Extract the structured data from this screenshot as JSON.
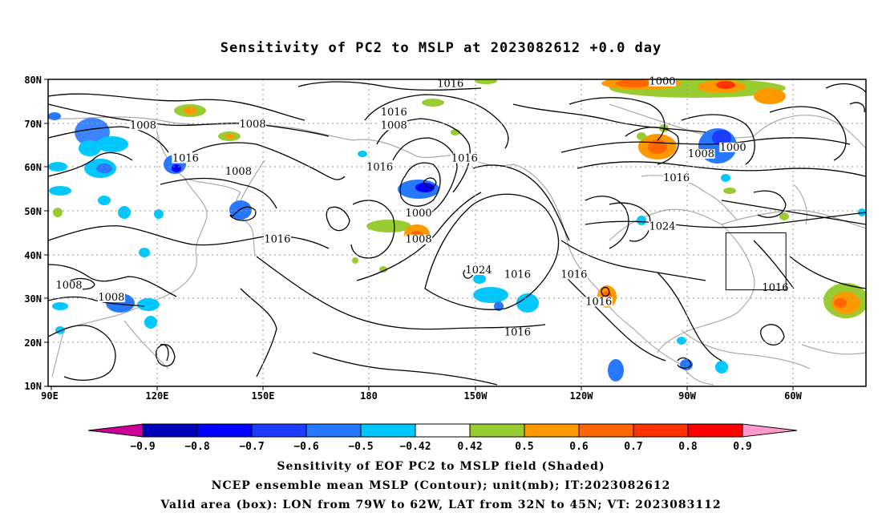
{
  "title": "Sensitivity of PC2 to MSLP at 2023082612 +0.0 day",
  "lat_labels": [
    "80N",
    "70N",
    "60N",
    "50N",
    "40N",
    "30N",
    "20N",
    "10N"
  ],
  "lon_labels": [
    "90E",
    "120E",
    "150E",
    "180",
    "150W",
    "120W",
    "90W",
    "60W"
  ],
  "contour_labels": [
    {
      "text": "1016",
      "lon": -157,
      "lat": 79
    },
    {
      "text": "1000",
      "lon": -97,
      "lat": 79.5
    },
    {
      "text": "1016",
      "lon": -173,
      "lat": 72.5
    },
    {
      "text": "1008",
      "lon": -173,
      "lat": 69.5
    },
    {
      "text": "1008",
      "lon": 116,
      "lat": 69.5
    },
    {
      "text": "1008",
      "lon": 147,
      "lat": 69.8
    },
    {
      "text": "1016",
      "lon": 128,
      "lat": 62
    },
    {
      "text": "1008",
      "lon": 143,
      "lat": 59
    },
    {
      "text": "1016",
      "lon": -177,
      "lat": 60
    },
    {
      "text": "1016",
      "lon": -153,
      "lat": 62
    },
    {
      "text": "1008",
      "lon": -86,
      "lat": 63
    },
    {
      "text": "1000",
      "lon": -77,
      "lat": 64.5
    },
    {
      "text": "1016",
      "lon": -93,
      "lat": 57.5
    },
    {
      "text": "1000",
      "lon": -166,
      "lat": 49.5
    },
    {
      "text": "1008",
      "lon": -166,
      "lat": 43.5
    },
    {
      "text": "1016",
      "lon": 154,
      "lat": 43.5
    },
    {
      "text": "1024",
      "lon": -97,
      "lat": 46.5
    },
    {
      "text": "1024",
      "lon": -149,
      "lat": 36.5
    },
    {
      "text": "1016",
      "lon": -138,
      "lat": 35.5
    },
    {
      "text": "1016",
      "lon": -122,
      "lat": 35.5
    },
    {
      "text": "1008",
      "lon": 95,
      "lat": 33
    },
    {
      "text": "1008",
      "lon": 107,
      "lat": 30.3
    },
    {
      "text": "1016",
      "lon": -115,
      "lat": 29.3
    },
    {
      "text": "1016",
      "lon": -65,
      "lat": 32.5
    },
    {
      "text": "1016",
      "lon": -138,
      "lat": 22.3
    }
  ],
  "valid_box": {
    "lon_min": -79,
    "lon_max": -62,
    "lat_min": 32,
    "lat_max": 45
  },
  "colorbar": {
    "labels": [
      "-0.9",
      "-0.8",
      "-0.7",
      "-0.6",
      "-0.5",
      "-0.42",
      "0.42",
      "0.5",
      "0.6",
      "0.7",
      "0.8",
      "0.9"
    ],
    "colors": [
      "#cc0099",
      "#0000bb",
      "#0000ff",
      "#1c3cff",
      "#2878ff",
      "#00c8ff",
      "#ffffff",
      "#99cc33",
      "#ff9900",
      "#ff6600",
      "#ff3300",
      "#ff0000",
      "#ff99cc"
    ]
  },
  "captions": [
    "Sensitivity of EOF PC2 to MSLP field (Shaded)",
    "NCEP ensemble mean MSLP (Contour); unit(mb); IT:2023082612",
    "Valid area (box): LON from 79W to 62W, LAT from 32N to 45N; VT: 2023083112"
  ]
}
